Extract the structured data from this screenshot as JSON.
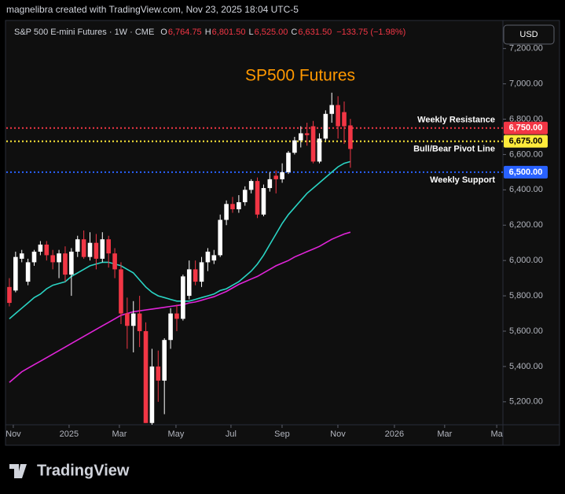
{
  "header": {
    "credit": "magnelibra created with TradingView.com, Nov 23, 2025 18:04 UTC-5",
    "symbol": "S&P 500 E-mini Futures · 1W · CME",
    "ohlc": [
      {
        "label": "O",
        "value": "6,764.75"
      },
      {
        "label": "H",
        "value": "6,801.50"
      },
      {
        "label": "L",
        "value": "6,525.00"
      },
      {
        "label": "C",
        "value": "6,631.50"
      }
    ],
    "change": "−133.75 (−1.98%)",
    "currency_button": "USD"
  },
  "footer": {
    "logo": "TradingView"
  },
  "chart_data": {
    "type": "candlestick",
    "title": "SP500 Futures",
    "up_color": "#ffffff",
    "down_color": "#f23645",
    "open": [
      5850,
      5830,
      6010,
      5880,
      5990,
      6050,
      6090,
      6030,
      5990,
      6040,
      5920,
      6050,
      6120,
      6020,
      6100,
      6010,
      6120,
      6040,
      5950,
      5700,
      5630,
      5700,
      5600,
      5080,
      5400,
      5320,
      5550,
      5700,
      5670,
      5800,
      5950,
      5880,
      5990,
      6000,
      6030,
      6230,
      6320,
      6290,
      6330,
      6400,
      6450,
      6260,
      6410,
      6480,
      6460,
      6500,
      6610,
      6680,
      6720,
      6760,
      6560,
      6690,
      6830,
      6880,
      6840,
      6764.75
    ],
    "high": [
      5900,
      6050,
      6060,
      6010,
      6060,
      6110,
      6110,
      6060,
      6060,
      6080,
      6070,
      6140,
      6170,
      6160,
      6150,
      6160,
      6140,
      6070,
      5990,
      5790,
      5770,
      5800,
      5650,
      5500,
      5490,
      5560,
      5730,
      5750,
      5920,
      6000,
      6000,
      6020,
      6070,
      6060,
      6260,
      6340,
      6360,
      6370,
      6420,
      6460,
      6470,
      6430,
      6500,
      6510,
      6550,
      6620,
      6700,
      6760,
      6780,
      6790,
      6720,
      6850,
      6950,
      6930,
      6900,
      6801.5
    ],
    "low": [
      5740,
      5820,
      5990,
      5860,
      5970,
      6030,
      6000,
      5950,
      5900,
      5880,
      5800,
      6020,
      6010,
      6000,
      5950,
      5990,
      5960,
      5900,
      5640,
      5500,
      5480,
      5510,
      5080,
      5050,
      5200,
      5130,
      5500,
      5600,
      5660,
      5780,
      5860,
      5850,
      5940,
      5980,
      6020,
      6200,
      6270,
      6270,
      6310,
      6380,
      6240,
      6250,
      6390,
      6380,
      6440,
      6490,
      6600,
      6640,
      6650,
      6550,
      6550,
      6680,
      6780,
      6690,
      6660,
      6525
    ],
    "close": [
      5760,
      6020,
      6040,
      5990,
      6050,
      6090,
      6030,
      5990,
      6040,
      5920,
      6050,
      6120,
      6020,
      6100,
      6010,
      6120,
      6040,
      5950,
      5700,
      5630,
      5700,
      5600,
      5080,
      5400,
      5320,
      5550,
      5700,
      5670,
      5910,
      5950,
      5880,
      5990,
      6050,
      6030,
      6230,
      6320,
      6290,
      6330,
      6400,
      6450,
      6260,
      6410,
      6460,
      6460,
      6500,
      6610,
      6680,
      6720,
      6710,
      6560,
      6690,
      6830,
      6880,
      6760,
      6760,
      6631.5
    ],
    "series": [
      {
        "color": "#2ad4c4",
        "values": [
          5670,
          5700,
          5730,
          5760,
          5790,
          5810,
          5840,
          5860,
          5870,
          5880,
          5910,
          5930,
          5950,
          5970,
          5980,
          5990,
          5990,
          5980,
          5970,
          5950,
          5930,
          5890,
          5850,
          5820,
          5800,
          5790,
          5780,
          5770,
          5770,
          5770,
          5780,
          5790,
          5800,
          5810,
          5830,
          5840,
          5860,
          5880,
          5910,
          5940,
          5980,
          6030,
          6090,
          6150,
          6210,
          6260,
          6300,
          6340,
          6380,
          6410,
          6440,
          6470,
          6500,
          6530,
          6550,
          6560
        ]
      },
      {
        "color": "#e024d8",
        "values": [
          5310,
          5340,
          5370,
          5390,
          5410,
          5430,
          5450,
          5470,
          5490,
          5510,
          5530,
          5550,
          5570,
          5590,
          5610,
          5630,
          5650,
          5670,
          5690,
          5700,
          5710,
          5715,
          5720,
          5725,
          5730,
          5735,
          5740,
          5745,
          5750,
          5760,
          5765,
          5775,
          5785,
          5795,
          5810,
          5825,
          5845,
          5865,
          5880,
          5895,
          5910,
          5930,
          5950,
          5970,
          5985,
          6000,
          6020,
          6035,
          6050,
          6065,
          6080,
          6100,
          6120,
          6135,
          6150,
          6160
        ]
      }
    ],
    "levels": [
      {
        "value": 6750,
        "label": "6,750.00",
        "annotation": "Weekly Resistance",
        "color": "#f23645",
        "text_color": "#ffffff"
      },
      {
        "value": 6675,
        "label": "6,675.00",
        "annotation": "Bull/Bear Pivot Line",
        "color": "#ffeb3b",
        "text_color": "#000000"
      },
      {
        "value": 6500,
        "label": "6,500.00",
        "annotation": "Weekly Support",
        "color": "#2962ff",
        "text_color": "#ffffff"
      }
    ],
    "ylim": [
      5070,
      7350
    ],
    "yticks": [
      {
        "value": 5200,
        "label": "5,200.00"
      },
      {
        "value": 5400,
        "label": "5,400.00"
      },
      {
        "value": 5600,
        "label": "5,600.00"
      },
      {
        "value": 5800,
        "label": "5,800.00"
      },
      {
        "value": 6000,
        "label": "6,000.00"
      },
      {
        "value": 6200,
        "label": "6,200.00"
      },
      {
        "value": 6400,
        "label": "6,400.00"
      },
      {
        "value": 6600,
        "label": "6,600.00"
      },
      {
        "value": 6800,
        "label": "6,800.00"
      },
      {
        "value": 7000,
        "label": "7,000.00"
      },
      {
        "value": 7200,
        "label": "7,200.00"
      }
    ],
    "xlim": [
      -0.5,
      79.6
    ],
    "xticks": [
      {
        "value": 0.63,
        "label": "Nov"
      },
      {
        "value": 9.63,
        "label": "2025"
      },
      {
        "value": 17.74,
        "label": "Mar"
      },
      {
        "value": 26.87,
        "label": "May"
      },
      {
        "value": 35.74,
        "label": "Jul"
      },
      {
        "value": 43.98,
        "label": "Sep"
      },
      {
        "value": 52.98,
        "label": "Nov"
      },
      {
        "value": 62.1,
        "label": "2026"
      },
      {
        "value": 70.2,
        "label": "Mar"
      },
      {
        "value": 78.6,
        "label": "Ma"
      }
    ],
    "grid": false
  }
}
